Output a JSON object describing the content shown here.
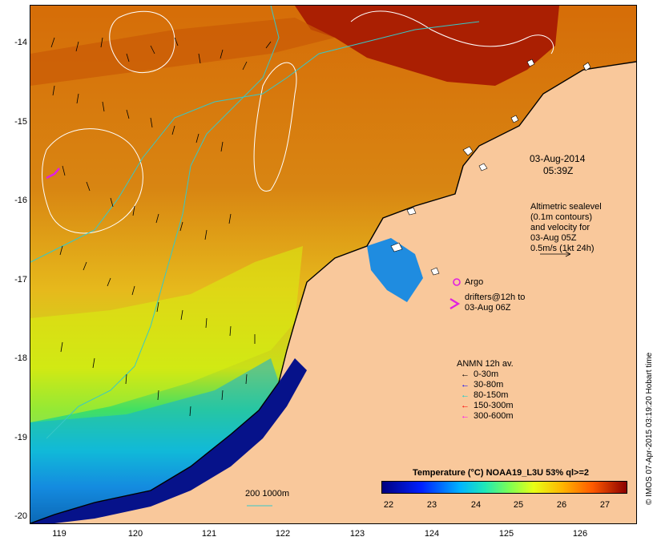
{
  "map": {
    "lat_labels": [
      "-14",
      "-15",
      "-16",
      "-17",
      "-18",
      "-19",
      "-20"
    ],
    "lon_labels": [
      "119",
      "120",
      "121",
      "122",
      "123",
      "124",
      "125",
      "126"
    ],
    "date_line1": "03-Aug-2014",
    "date_line2": "05:39Z",
    "altimetry": {
      "line1": "Altimetric sealevel",
      "line2": "(0.1m contours)",
      "line3": "and velocity for",
      "line4": "03-Aug 05Z",
      "line5": "0.5m/s (1kt 24h)"
    },
    "argo_label": "Argo",
    "drifters_line1": "drifters@12h to",
    "drifters_line2": "03-Aug 06Z",
    "anmn": {
      "title": "ANMN 12h av.",
      "rows": [
        {
          "label": "0-30m",
          "color": "#000000"
        },
        {
          "label": "30-80m",
          "color": "#0000ff"
        },
        {
          "label": "80-150m",
          "color": "#00d0d0"
        },
        {
          "label": "150-300m",
          "color": "#ff0000"
        },
        {
          "label": "300-600m",
          "color": "#ff00ff"
        }
      ]
    },
    "isobath_label": "200  1000m",
    "colorbar": {
      "title": "Temperature (°C) NOAA19_L3U 53% ql>=2",
      "ticks": [
        "22",
        "23",
        "24",
        "25",
        "26",
        "27"
      ]
    },
    "credit": "© IMOS 07-Apr-2015 03:19:20 Hobart time",
    "colors": {
      "land": "#f9c89b",
      "warm_water": "#d96f0a",
      "hot_water": "#a01400",
      "cool_water": "#0b1fc0",
      "isobath": "#36c8c8",
      "contour": "#ffffff"
    }
  }
}
